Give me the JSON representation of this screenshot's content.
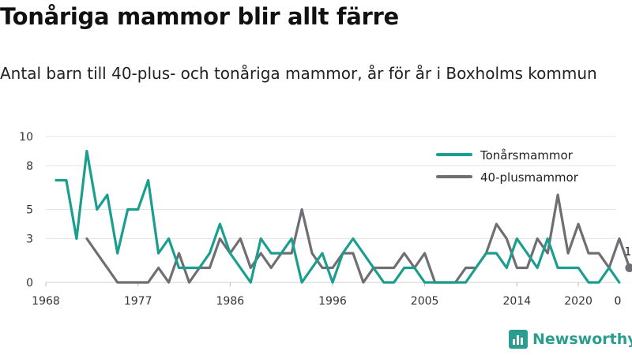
{
  "title": "Tonåriga mammor blir allt färre",
  "subtitle": "Antal barn till 40-plus- och tonåriga mammor, år för år i Boxholms kommun",
  "brand": "Newsworthy",
  "chart_data": {
    "type": "line",
    "title": "Tonåriga mammor blir allt färre",
    "subtitle": "Antal barn till 40-plus- och tonåriga mammor, år för år i Boxholms kommun",
    "xlim": [
      1968,
      2022
    ],
    "ylim": [
      0,
      10
    ],
    "x_ticks": [
      1968,
      1977,
      1986,
      1996,
      2005,
      2014,
      2020
    ],
    "y_ticks": [
      0,
      3,
      5,
      8,
      10
    ],
    "grid": "horizontal",
    "legend": "top-right",
    "series": [
      {
        "name": "Tonårsmammor",
        "color": "#1a9e8e",
        "points": [
          [
            1969,
            7
          ],
          [
            1970,
            7
          ],
          [
            1971,
            3
          ],
          [
            1972,
            9
          ],
          [
            1973,
            5
          ],
          [
            1974,
            6
          ],
          [
            1975,
            2
          ],
          [
            1976,
            5
          ],
          [
            1977,
            5
          ],
          [
            1978,
            7
          ],
          [
            1979,
            2
          ],
          [
            1980,
            3
          ],
          [
            1981,
            1
          ],
          [
            1982,
            1
          ],
          [
            1983,
            1
          ],
          [
            1984,
            2
          ],
          [
            1985,
            4
          ],
          [
            1986,
            2
          ],
          [
            1987,
            1
          ],
          [
            1988,
            0
          ],
          [
            1989,
            3
          ],
          [
            1990,
            2
          ],
          [
            1991,
            2
          ],
          [
            1992,
            3
          ],
          [
            1993,
            0
          ],
          [
            1994,
            1
          ],
          [
            1995,
            2
          ],
          [
            1996,
            0
          ],
          [
            1997,
            2
          ],
          [
            1998,
            3
          ],
          [
            1999,
            2
          ],
          [
            2000,
            1
          ],
          [
            2001,
            0
          ],
          [
            2002,
            0
          ],
          [
            2003,
            1
          ],
          [
            2004,
            1
          ],
          [
            2005,
            0
          ],
          [
            2006,
            0
          ],
          [
            2007,
            0
          ],
          [
            2008,
            0
          ],
          [
            2009,
            0
          ],
          [
            2010,
            1
          ],
          [
            2011,
            2
          ],
          [
            2012,
            2
          ],
          [
            2013,
            1
          ],
          [
            2014,
            3
          ],
          [
            2015,
            2
          ],
          [
            2016,
            1
          ],
          [
            2017,
            3
          ],
          [
            2018,
            1
          ],
          [
            2019,
            1
          ],
          [
            2020,
            1
          ],
          [
            2021,
            0
          ],
          [
            2022,
            0
          ],
          [
            2023,
            1
          ],
          [
            2024,
            0
          ]
        ]
      },
      {
        "name": "40-plusmammor",
        "color": "#6e6e73",
        "points": [
          [
            1972,
            3
          ],
          [
            1973,
            2
          ],
          [
            1974,
            1
          ],
          [
            1975,
            0
          ],
          [
            1976,
            0
          ],
          [
            1977,
            0
          ],
          [
            1978,
            0
          ],
          [
            1979,
            1
          ],
          [
            1980,
            0
          ],
          [
            1981,
            2
          ],
          [
            1982,
            0
          ],
          [
            1983,
            1
          ],
          [
            1984,
            1
          ],
          [
            1985,
            3
          ],
          [
            1986,
            2
          ],
          [
            1987,
            3
          ],
          [
            1988,
            1
          ],
          [
            1989,
            2
          ],
          [
            1990,
            1
          ],
          [
            1991,
            2
          ],
          [
            1992,
            2
          ],
          [
            1993,
            5
          ],
          [
            1994,
            2
          ],
          [
            1995,
            1
          ],
          [
            1996,
            1
          ],
          [
            1997,
            2
          ],
          [
            1998,
            2
          ],
          [
            1999,
            0
          ],
          [
            2000,
            1
          ],
          [
            2001,
            1
          ],
          [
            2002,
            1
          ],
          [
            2003,
            2
          ],
          [
            2004,
            1
          ],
          [
            2005,
            2
          ],
          [
            2006,
            0
          ],
          [
            2007,
            0
          ],
          [
            2008,
            0
          ],
          [
            2009,
            1
          ],
          [
            2010,
            1
          ],
          [
            2011,
            2
          ],
          [
            2012,
            4
          ],
          [
            2013,
            3
          ],
          [
            2014,
            1
          ],
          [
            2015,
            1
          ],
          [
            2016,
            3
          ],
          [
            2017,
            2
          ],
          [
            2018,
            6
          ],
          [
            2019,
            2
          ],
          [
            2020,
            4
          ],
          [
            2021,
            2
          ],
          [
            2022,
            2
          ],
          [
            2023,
            1
          ],
          [
            2024,
            3
          ],
          [
            2025,
            1
          ]
        ]
      }
    ],
    "end_labels": [
      {
        "series": "40-plusmammor",
        "x": 2025,
        "y": 1,
        "text": "1"
      },
      {
        "series": "Tonårsmammor",
        "x": 2024,
        "y": 0,
        "text": "0"
      }
    ]
  }
}
